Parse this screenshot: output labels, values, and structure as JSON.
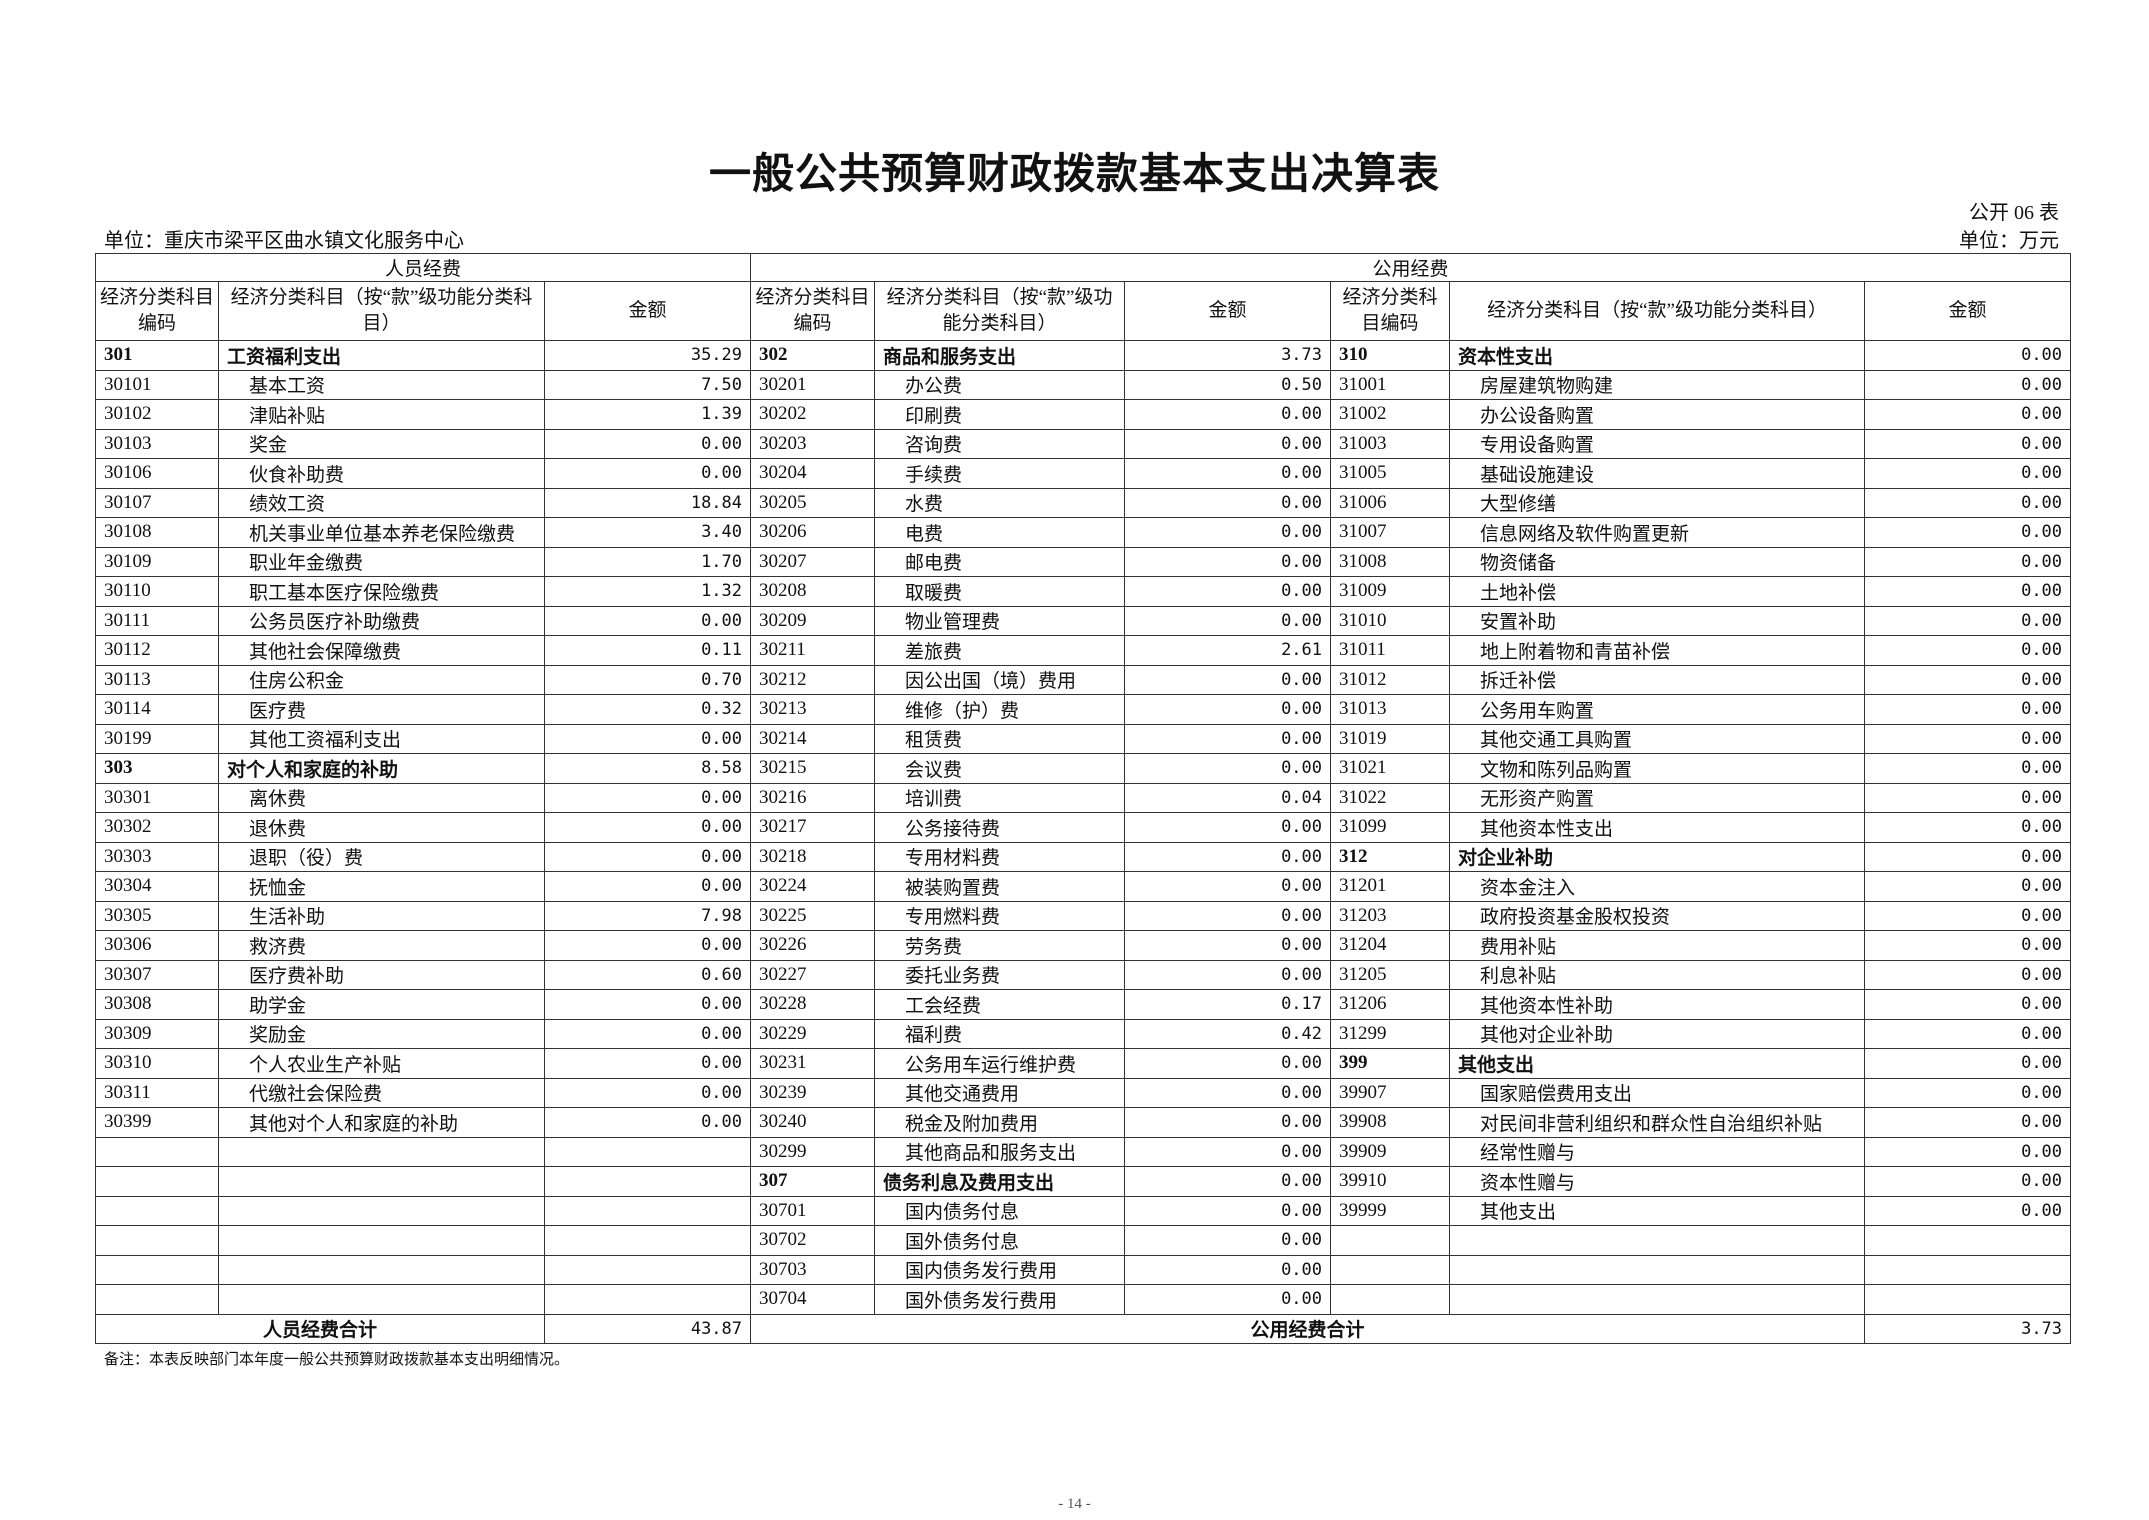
{
  "title": "一般公共预算财政拨款基本支出决算表",
  "form_no": "公开 06 表",
  "unit_org": "单位：重庆市梁平区曲水镇文化服务中心",
  "unit_currency": "单位：万元",
  "groups": {
    "personnel": "人员经费",
    "public": "公用经费"
  },
  "col_headers": {
    "left_code": "经济分类科目编码",
    "left_name": "经济分类科目（按“款”级功能分类科目）",
    "left_amount": "金额",
    "mid_code": "经济分类科目编码",
    "mid_name": "经济分类科目（按“款”级功能分类科目）",
    "mid_amount": "金额",
    "right_code": "经济分类科目编码",
    "right_name": "经济分类科目（按“款”级功能分类科目）",
    "right_amount": "金额"
  },
  "left_rows": [
    [
      "301",
      "工资福利支出",
      "35.29"
    ],
    [
      "30101",
      "基本工资",
      "7.50"
    ],
    [
      "30102",
      "津贴补贴",
      "1.39"
    ],
    [
      "30103",
      "奖金",
      "0.00"
    ],
    [
      "30106",
      "伙食补助费",
      "0.00"
    ],
    [
      "30107",
      "绩效工资",
      "18.84"
    ],
    [
      "30108",
      "机关事业单位基本养老保险缴费",
      "3.40"
    ],
    [
      "30109",
      "职业年金缴费",
      "1.70"
    ],
    [
      "30110",
      "职工基本医疗保险缴费",
      "1.32"
    ],
    [
      "30111",
      "公务员医疗补助缴费",
      "0.00"
    ],
    [
      "30112",
      "其他社会保障缴费",
      "0.11"
    ],
    [
      "30113",
      "住房公积金",
      "0.70"
    ],
    [
      "30114",
      "医疗费",
      "0.32"
    ],
    [
      "30199",
      "其他工资福利支出",
      "0.00"
    ],
    [
      "303",
      "对个人和家庭的补助",
      "8.58"
    ],
    [
      "30301",
      "离休费",
      "0.00"
    ],
    [
      "30302",
      "退休费",
      "0.00"
    ],
    [
      "30303",
      "退职（役）费",
      "0.00"
    ],
    [
      "30304",
      "抚恤金",
      "0.00"
    ],
    [
      "30305",
      "生活补助",
      "7.98"
    ],
    [
      "30306",
      "救济费",
      "0.00"
    ],
    [
      "30307",
      "医疗费补助",
      "0.60"
    ],
    [
      "30308",
      "助学金",
      "0.00"
    ],
    [
      "30309",
      "奖励金",
      "0.00"
    ],
    [
      "30310",
      "个人农业生产补贴",
      "0.00"
    ],
    [
      "30311",
      "代缴社会保险费",
      "0.00"
    ],
    [
      "30399",
      "其他对个人和家庭的补助",
      "0.00"
    ],
    [
      "",
      "",
      ""
    ],
    [
      "",
      "",
      ""
    ],
    [
      "",
      "",
      ""
    ],
    [
      "",
      "",
      ""
    ],
    [
      "",
      "",
      ""
    ],
    [
      "",
      "",
      ""
    ]
  ],
  "mid_rows": [
    [
      "302",
      "商品和服务支出",
      "3.73"
    ],
    [
      "30201",
      "办公费",
      "0.50"
    ],
    [
      "30202",
      "印刷费",
      "0.00"
    ],
    [
      "30203",
      "咨询费",
      "0.00"
    ],
    [
      "30204",
      "手续费",
      "0.00"
    ],
    [
      "30205",
      "水费",
      "0.00"
    ],
    [
      "30206",
      "电费",
      "0.00"
    ],
    [
      "30207",
      "邮电费",
      "0.00"
    ],
    [
      "30208",
      "取暖费",
      "0.00"
    ],
    [
      "30209",
      "物业管理费",
      "0.00"
    ],
    [
      "30211",
      "差旅费",
      "2.61"
    ],
    [
      "30212",
      "因公出国（境）费用",
      "0.00"
    ],
    [
      "30213",
      "维修（护）费",
      "0.00"
    ],
    [
      "30214",
      "租赁费",
      "0.00"
    ],
    [
      "30215",
      "会议费",
      "0.00"
    ],
    [
      "30216",
      "培训费",
      "0.04"
    ],
    [
      "30217",
      "公务接待费",
      "0.00"
    ],
    [
      "30218",
      "专用材料费",
      "0.00"
    ],
    [
      "30224",
      "被装购置费",
      "0.00"
    ],
    [
      "30225",
      "专用燃料费",
      "0.00"
    ],
    [
      "30226",
      "劳务费",
      "0.00"
    ],
    [
      "30227",
      "委托业务费",
      "0.00"
    ],
    [
      "30228",
      "工会经费",
      "0.17"
    ],
    [
      "30229",
      "福利费",
      "0.42"
    ],
    [
      "30231",
      "公务用车运行维护费",
      "0.00"
    ],
    [
      "30239",
      "其他交通费用",
      "0.00"
    ],
    [
      "30240",
      "税金及附加费用",
      "0.00"
    ],
    [
      "30299",
      "其他商品和服务支出",
      "0.00"
    ],
    [
      "307",
      "债务利息及费用支出",
      "0.00"
    ],
    [
      "30701",
      "国内债务付息",
      "0.00"
    ],
    [
      "30702",
      "国外债务付息",
      "0.00"
    ],
    [
      "30703",
      "国内债务发行费用",
      "0.00"
    ],
    [
      "30704",
      "国外债务发行费用",
      "0.00"
    ]
  ],
  "right_rows": [
    [
      "310",
      "资本性支出",
      "0.00"
    ],
    [
      "31001",
      "房屋建筑物购建",
      "0.00"
    ],
    [
      "31002",
      "办公设备购置",
      "0.00"
    ],
    [
      "31003",
      "专用设备购置",
      "0.00"
    ],
    [
      "31005",
      "基础设施建设",
      "0.00"
    ],
    [
      "31006",
      "大型修缮",
      "0.00"
    ],
    [
      "31007",
      "信息网络及软件购置更新",
      "0.00"
    ],
    [
      "31008",
      "物资储备",
      "0.00"
    ],
    [
      "31009",
      "土地补偿",
      "0.00"
    ],
    [
      "31010",
      "安置补助",
      "0.00"
    ],
    [
      "31011",
      "地上附着物和青苗补偿",
      "0.00"
    ],
    [
      "31012",
      "拆迁补偿",
      "0.00"
    ],
    [
      "31013",
      "公务用车购置",
      "0.00"
    ],
    [
      "31019",
      "其他交通工具购置",
      "0.00"
    ],
    [
      "31021",
      "文物和陈列品购置",
      "0.00"
    ],
    [
      "31022",
      "无形资产购置",
      "0.00"
    ],
    [
      "31099",
      "其他资本性支出",
      "0.00"
    ],
    [
      "312",
      "对企业补助",
      "0.00"
    ],
    [
      "31201",
      "资本金注入",
      "0.00"
    ],
    [
      "31203",
      "政府投资基金股权投资",
      "0.00"
    ],
    [
      "31204",
      "费用补贴",
      "0.00"
    ],
    [
      "31205",
      "利息补贴",
      "0.00"
    ],
    [
      "31206",
      "其他资本性补助",
      "0.00"
    ],
    [
      "31299",
      "其他对企业补助",
      "0.00"
    ],
    [
      "399",
      "其他支出",
      "0.00"
    ],
    [
      "39907",
      "国家赔偿费用支出",
      "0.00"
    ],
    [
      "39908",
      "对民间非营利组织和群众性自治组织补贴",
      "0.00"
    ],
    [
      "39909",
      "经常性赠与",
      "0.00"
    ],
    [
      "39910",
      "资本性赠与",
      "0.00"
    ],
    [
      "39999",
      "其他支出",
      "0.00"
    ],
    [
      "",
      "",
      ""
    ],
    [
      "",
      "",
      ""
    ],
    [
      "",
      "",
      ""
    ]
  ],
  "totals": {
    "personnel_label": "人员经费合计",
    "personnel_amount": "43.87",
    "public_label": "公用经费合计",
    "public_amount": "3.73"
  },
  "note": "备注：本表反映部门本年度一般公共预算财政拨款基本支出明细情况。",
  "page_number": "- 14 -"
}
